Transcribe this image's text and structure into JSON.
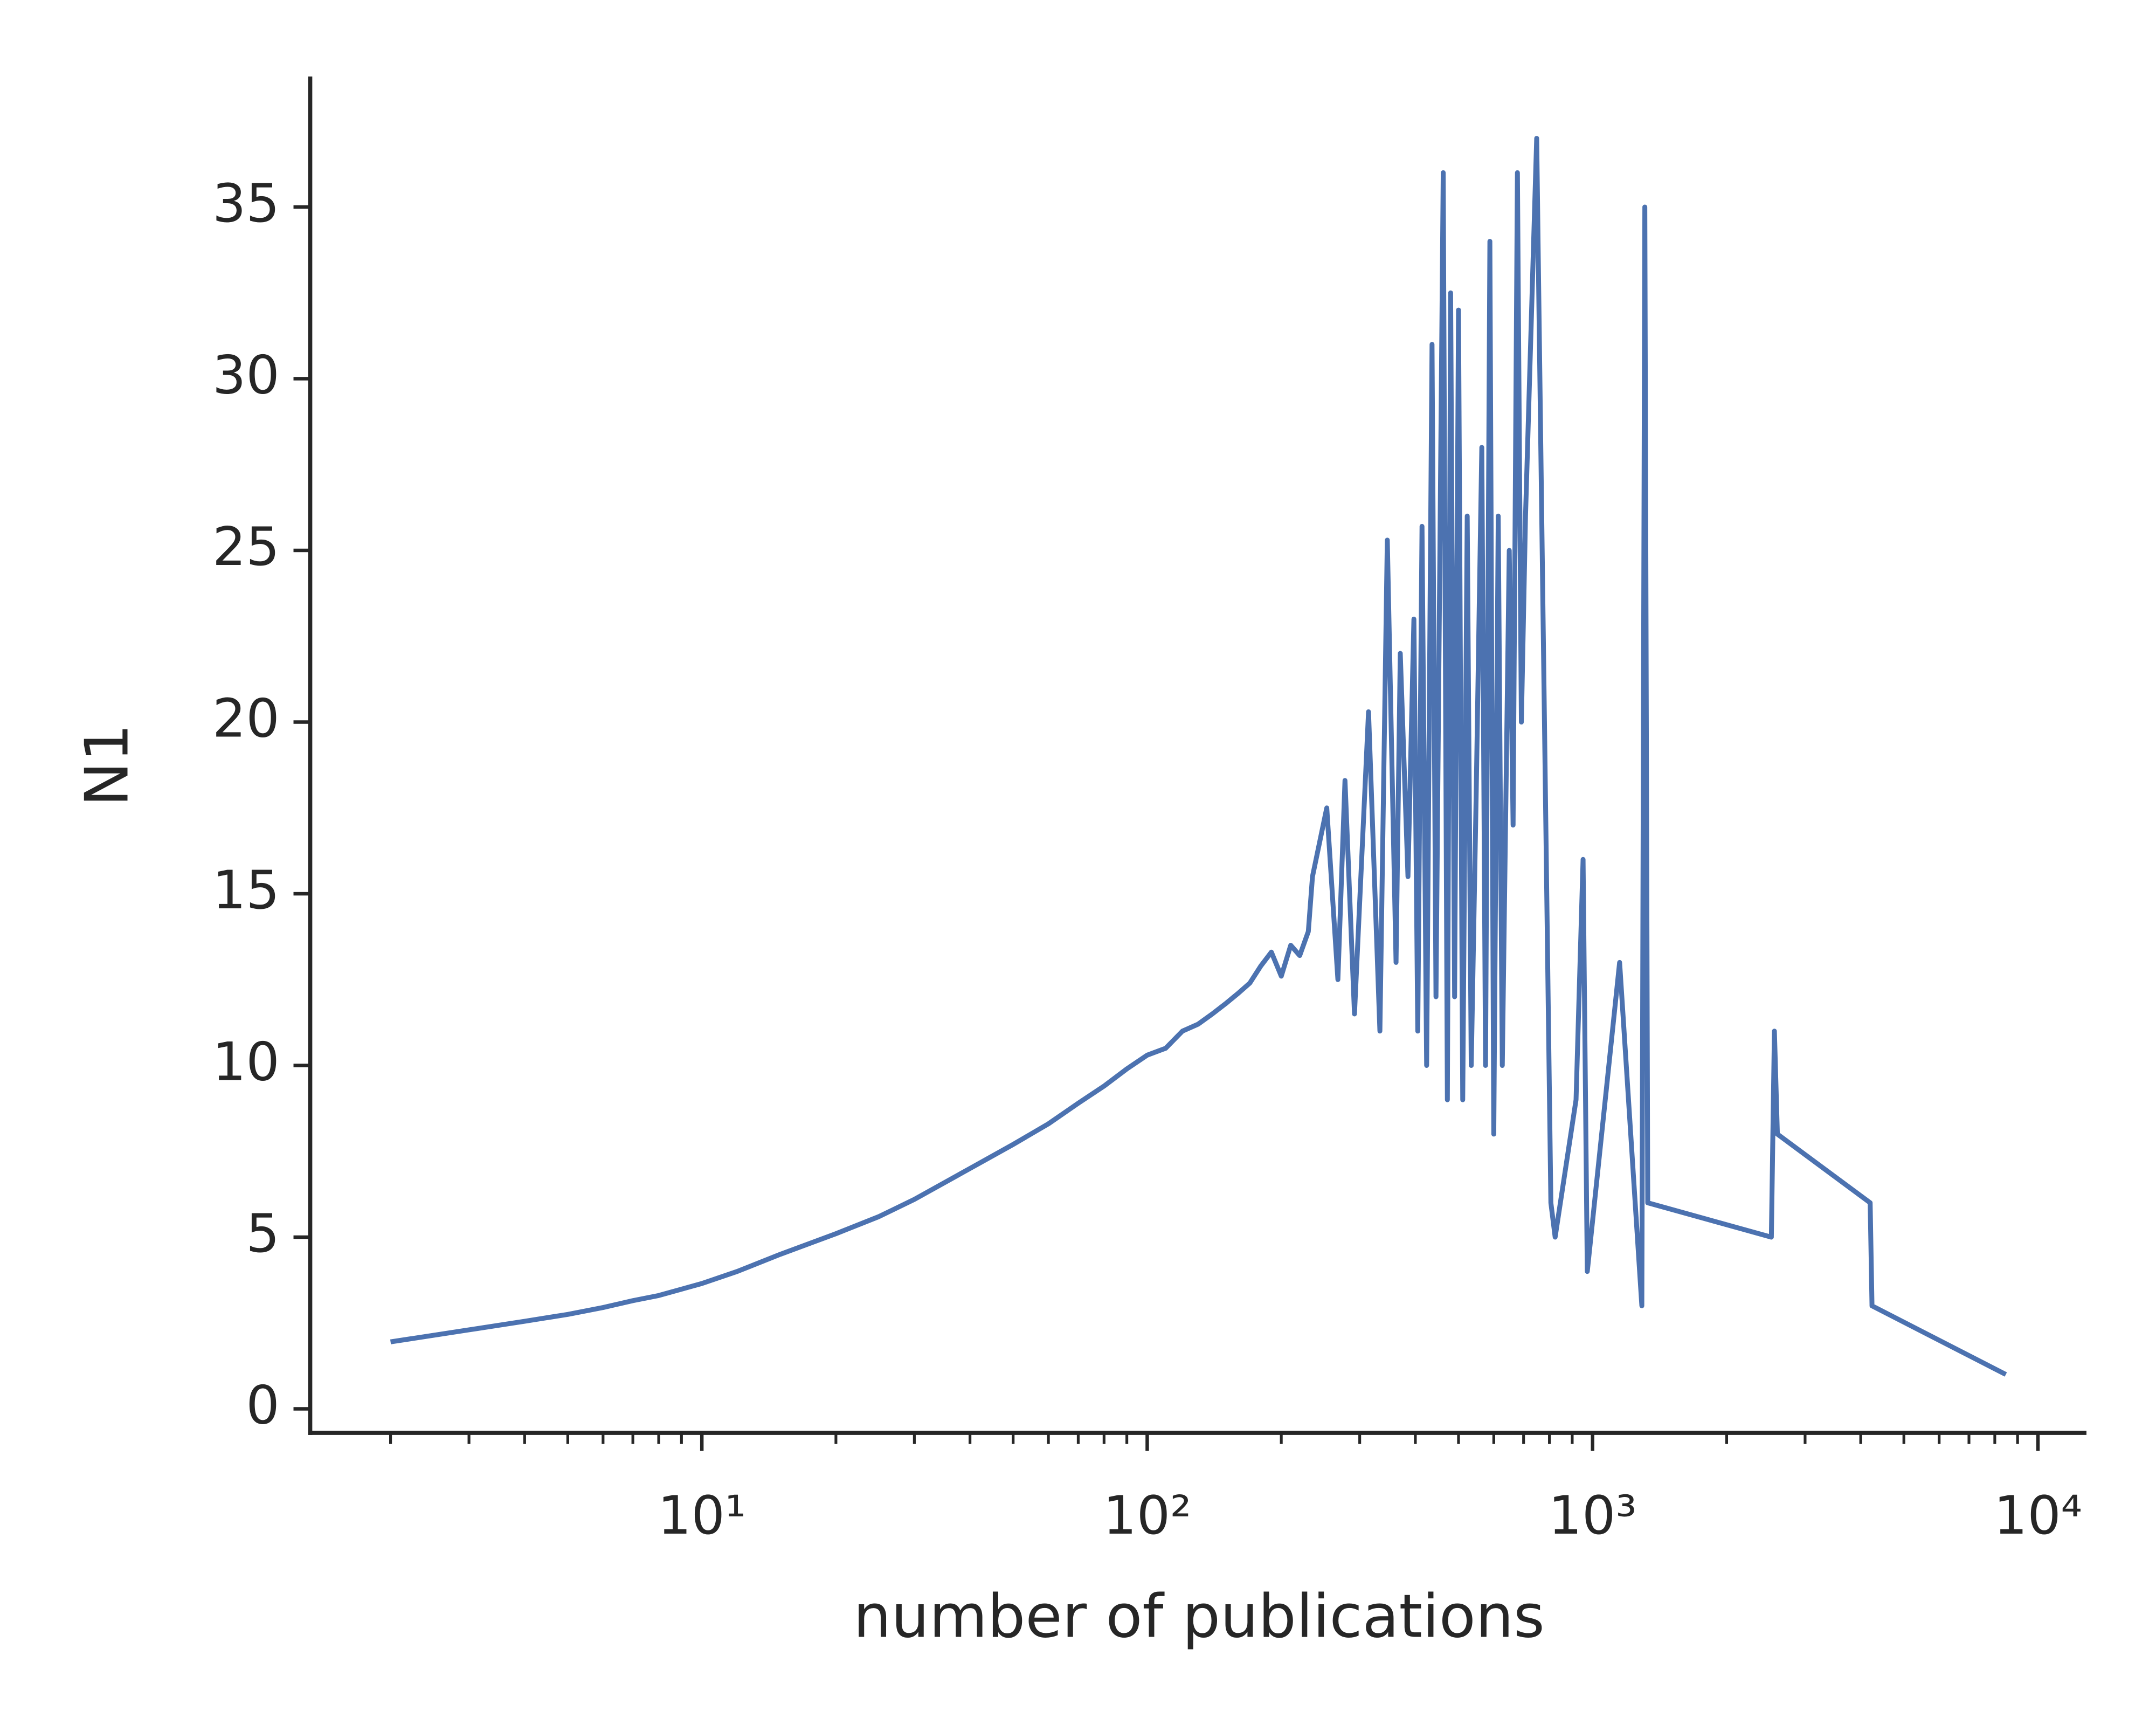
{
  "chart_data": {
    "type": "line",
    "xlabel": "number of publications",
    "ylabel": "N1",
    "xscale": "log",
    "color": "#4c72b0",
    "x": [
      2,
      3,
      4,
      5,
      6,
      7,
      8,
      10,
      12,
      15,
      20,
      25,
      30,
      40,
      50,
      60,
      70,
      80,
      90,
      100,
      110,
      120,
      130,
      140,
      150,
      160,
      170,
      180,
      190,
      200,
      210,
      220,
      230,
      235,
      253,
      268,
      278,
      292,
      314,
      333,
      346,
      362,
      370,
      385,
      397,
      405,
      414,
      424,
      436,
      445,
      462,
      472,
      480,
      490,
      500,
      511,
      523,
      534,
      548,
      564,
      575,
      588,
      600,
      614,
      627,
      650,
      663,
      678,
      692,
      707,
      749,
      806,
      824,
      918,
      952,
      973,
      1150,
      1290,
      1310,
      1330,
      2520,
      2560,
      2600,
      4200,
      4240,
      8470
    ],
    "values": [
      1.95,
      2.3,
      2.55,
      2.75,
      2.95,
      3.15,
      3.3,
      3.65,
      4.0,
      4.5,
      5.1,
      5.6,
      6.1,
      7.0,
      7.7,
      8.3,
      8.9,
      9.4,
      9.9,
      10.3,
      10.5,
      11.0,
      11.2,
      11.5,
      11.8,
      12.1,
      12.4,
      12.9,
      13.3,
      12.6,
      13.5,
      13.2,
      13.9,
      15.5,
      17.5,
      12.5,
      18.3,
      11.5,
      20.3,
      11,
      25.3,
      13,
      22,
      15.5,
      23,
      11,
      25.7,
      10,
      31,
      12,
      36,
      9,
      32.5,
      12,
      32,
      9,
      26,
      10,
      18,
      28,
      10,
      34,
      8,
      26,
      10,
      25,
      17,
      36,
      20,
      26,
      37,
      6,
      5,
      9,
      16,
      4,
      13,
      3,
      35,
      6,
      5,
      11,
      8,
      6,
      3,
      1
    ],
    "xlim": [
      1.32,
      12850
    ],
    "ylim": [
      -0.7,
      38.8
    ],
    "xticks": [
      {
        "value": 10,
        "label": "10¹"
      },
      {
        "value": 100,
        "label": "10²"
      },
      {
        "value": 1000,
        "label": "10³"
      },
      {
        "value": 10000,
        "label": "10⁴"
      }
    ],
    "xminorticks": [
      2,
      3,
      4,
      5,
      6,
      7,
      8,
      9,
      20,
      30,
      40,
      50,
      60,
      70,
      80,
      90,
      200,
      300,
      400,
      500,
      600,
      700,
      800,
      900,
      2000,
      3000,
      4000,
      5000,
      6000,
      7000,
      8000,
      9000
    ],
    "yticks": [
      0,
      5,
      10,
      15,
      20,
      25,
      30,
      35
    ]
  }
}
